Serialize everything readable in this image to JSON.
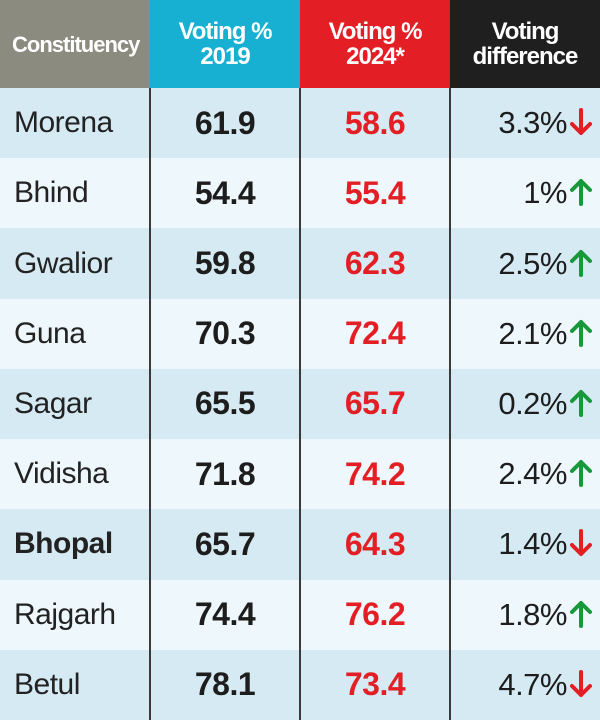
{
  "table": {
    "header": [
      "Constituency",
      "Voting % 2019",
      "Voting % 2024*",
      "Voting difference"
    ],
    "rows": [
      {
        "constituency": "Morena",
        "voting_2019": "61.9",
        "voting_2024": "58.6",
        "difference": "3.3%",
        "trend": "down",
        "bold": false
      },
      {
        "constituency": "Bhind",
        "voting_2019": "54.4",
        "voting_2024": "55.4",
        "difference": "1%",
        "trend": "up",
        "bold": false
      },
      {
        "constituency": "Gwalior",
        "voting_2019": "59.8",
        "voting_2024": "62.3",
        "difference": "2.5%",
        "trend": "up",
        "bold": false
      },
      {
        "constituency": "Guna",
        "voting_2019": "70.3",
        "voting_2024": "72.4",
        "difference": "2.1%",
        "trend": "up",
        "bold": false
      },
      {
        "constituency": "Sagar",
        "voting_2019": "65.5",
        "voting_2024": "65.7",
        "difference": "0.2%",
        "trend": "up",
        "bold": false
      },
      {
        "constituency": "Vidisha",
        "voting_2019": "71.8",
        "voting_2024": "74.2",
        "difference": "2.4%",
        "trend": "up",
        "bold": false
      },
      {
        "constituency": "Bhopal",
        "voting_2019": "65.7",
        "voting_2024": "64.3",
        "difference": "1.4%",
        "trend": "down",
        "bold": true
      },
      {
        "constituency": "Rajgarh",
        "voting_2019": "74.4",
        "voting_2024": "76.2",
        "difference": "1.8%",
        "trend": "up",
        "bold": false
      },
      {
        "constituency": "Betul",
        "voting_2019": "78.1",
        "voting_2024": "73.4",
        "difference": "4.7%",
        "trend": "down",
        "bold": false
      }
    ]
  }
}
